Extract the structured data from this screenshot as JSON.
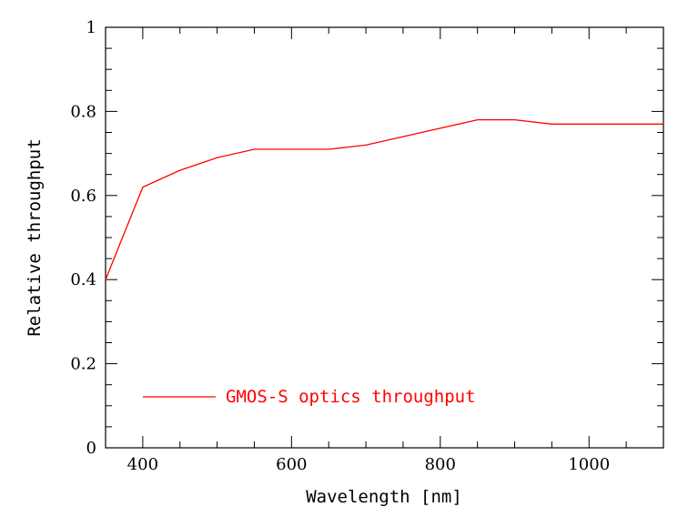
{
  "chart_data": {
    "type": "line",
    "xlabel": "Wavelength [nm]",
    "ylabel": "Relative throughput",
    "xlim": [
      350,
      1100
    ],
    "ylim": [
      0,
      1
    ],
    "x_major_ticks": [
      400,
      600,
      800,
      1000
    ],
    "x_minor_step": 50,
    "y_major_ticks": [
      0,
      0.2,
      0.4,
      0.6,
      0.8,
      1
    ],
    "y_tick_labels": [
      "0",
      "0.2",
      "0.4",
      "0.6",
      "0.8",
      "1"
    ],
    "y_minor_step": 0.05,
    "grid": false,
    "legend_position": "bottom-left",
    "series": [
      {
        "name": "GMOS-S optics throughput",
        "color": "#ff0000",
        "x": [
          350,
          400,
          450,
          500,
          550,
          600,
          650,
          700,
          750,
          800,
          850,
          900,
          950,
          1000,
          1050,
          1100
        ],
        "y": [
          0.4,
          0.62,
          0.66,
          0.69,
          0.71,
          0.71,
          0.71,
          0.72,
          0.74,
          0.76,
          0.78,
          0.78,
          0.77,
          0.77,
          0.77,
          0.77
        ]
      }
    ]
  }
}
